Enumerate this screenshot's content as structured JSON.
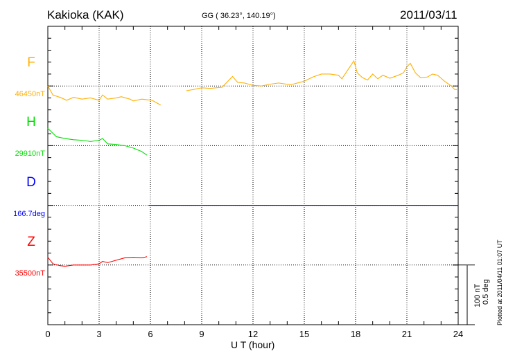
{
  "header": {
    "station": "Kakioka (KAK)",
    "coords": "GG ( 36.23°, 140.19°)",
    "date": "2011/03/11"
  },
  "footer": {
    "plotted_at": "Plotted at 2011/04/11 01:07 UT",
    "scale_nt": "100 nT",
    "scale_deg": "0.5 deg"
  },
  "chart_data": {
    "type": "line",
    "xlabel": "U T (hour)",
    "xlim": [
      0,
      24
    ],
    "xticks": [
      "0",
      "3",
      "6",
      "9",
      "12",
      "15",
      "18",
      "21",
      "24"
    ],
    "scale": "100 nT per major division (0.5 deg for D)",
    "series": [
      {
        "name": "F",
        "baseline_label": "46450nT",
        "color": "#ffb000",
        "segments": [
          [
            [
              0,
              0
            ],
            [
              0.3,
              -15
            ],
            [
              0.8,
              -20
            ],
            [
              1.1,
              -24
            ],
            [
              1.5,
              -19
            ],
            [
              2,
              -22
            ],
            [
              2.5,
              -20
            ],
            [
              3,
              -24
            ],
            [
              3.2,
              -15
            ],
            [
              3.5,
              -22
            ],
            [
              4,
              -20
            ],
            [
              4.3,
              -18
            ],
            [
              4.8,
              -22
            ],
            [
              5,
              -25
            ],
            [
              5.5,
              -22
            ],
            [
              5.8,
              -23
            ],
            [
              6.1,
              -24
            ],
            [
              6.6,
              -32
            ]
          ],
          [
            [
              8.1,
              -8
            ],
            [
              8.5,
              -6
            ],
            [
              9,
              -3
            ],
            [
              9.5,
              -4
            ],
            [
              10.2,
              -2
            ],
            [
              10.8,
              16
            ],
            [
              11.1,
              6
            ],
            [
              11.5,
              5
            ],
            [
              12,
              1
            ],
            [
              12.5,
              0
            ],
            [
              13,
              3
            ],
            [
              13.5,
              5
            ],
            [
              14.2,
              2
            ],
            [
              15,
              8
            ],
            [
              15.5,
              15
            ],
            [
              16,
              20
            ],
            [
              16.5,
              20
            ],
            [
              17,
              18
            ],
            [
              17.2,
              12
            ],
            [
              17.5,
              25
            ],
            [
              17.9,
              42
            ],
            [
              18.1,
              22
            ],
            [
              18.4,
              14
            ],
            [
              18.7,
              10
            ],
            [
              19,
              20
            ],
            [
              19.3,
              12
            ],
            [
              19.6,
              18
            ],
            [
              20,
              13
            ],
            [
              20.5,
              18
            ],
            [
              20.8,
              22
            ],
            [
              21,
              32
            ],
            [
              21.2,
              38
            ],
            [
              21.5,
              22
            ],
            [
              21.8,
              14
            ],
            [
              22.2,
              15
            ],
            [
              22.5,
              20
            ],
            [
              22.8,
              18
            ],
            [
              23.2,
              8
            ],
            [
              23.6,
              0
            ],
            [
              23.8,
              -6
            ],
            [
              24,
              -6
            ]
          ]
        ]
      },
      {
        "name": "H",
        "baseline_label": "29910nT",
        "color": "#00e000",
        "segments": [
          [
            [
              0,
              29
            ],
            [
              0.5,
              15
            ],
            [
              1,
              12
            ],
            [
              1.5,
              10
            ],
            [
              2,
              9
            ],
            [
              2.5,
              7
            ],
            [
              3,
              9
            ],
            [
              3.2,
              12
            ],
            [
              3.5,
              3
            ],
            [
              4,
              2
            ],
            [
              4.5,
              0
            ],
            [
              5,
              -4
            ],
            [
              5.5,
              -10
            ],
            [
              5.8,
              -16
            ]
          ]
        ]
      },
      {
        "name": "D",
        "baseline_label": "166.7deg",
        "color": "#0000ff",
        "segments": [
          [
            [
              5.9,
              0
            ],
            [
              24,
              0
            ]
          ]
        ]
      },
      {
        "name": "Z",
        "baseline_label": "35500nT",
        "color": "#ff0000",
        "segments": [
          [
            [
              0,
              13
            ],
            [
              0.3,
              2
            ],
            [
              0.7,
              -1
            ],
            [
              1,
              -2
            ],
            [
              1.5,
              0
            ],
            [
              2,
              0
            ],
            [
              2.5,
              0
            ],
            [
              3,
              2
            ],
            [
              3.2,
              6
            ],
            [
              3.5,
              4
            ],
            [
              4,
              8
            ],
            [
              4.5,
              12
            ],
            [
              5,
              13
            ],
            [
              5.5,
              12
            ],
            [
              5.8,
              14
            ]
          ]
        ]
      }
    ]
  }
}
